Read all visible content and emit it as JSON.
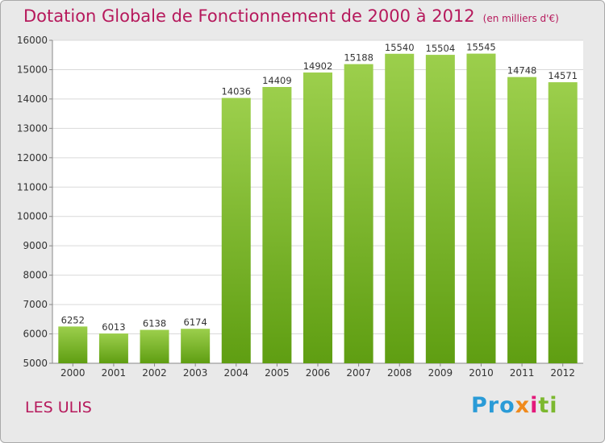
{
  "title": "Dotation Globale de Fonctionnement de 2000 à 2012",
  "subtitle": "(en milliers d'€)",
  "commune": "LES ULIS",
  "logo": {
    "part1": "Pro",
    "part2": "x",
    "part3": "i",
    "part4": "ti",
    "full": "Proxiti"
  },
  "colors": {
    "bar_top": "#9ccf4c",
    "bar_bottom": "#5f9e12",
    "title": "#b6195c",
    "background": "#e9e9e9"
  },
  "chart_data": {
    "type": "bar",
    "categories": [
      "2000",
      "2001",
      "2002",
      "2003",
      "2004",
      "2005",
      "2006",
      "2007",
      "2008",
      "2009",
      "2010",
      "2011",
      "2012"
    ],
    "values": [
      6252,
      6013,
      6138,
      6174,
      14036,
      14409,
      14902,
      15188,
      15540,
      15504,
      15545,
      14748,
      14571
    ],
    "ylim": [
      5000,
      16000
    ],
    "yticks": [
      5000,
      6000,
      7000,
      8000,
      9000,
      10000,
      11000,
      12000,
      13000,
      14000,
      15000,
      16000
    ],
    "grid": true,
    "data_labels": true
  }
}
